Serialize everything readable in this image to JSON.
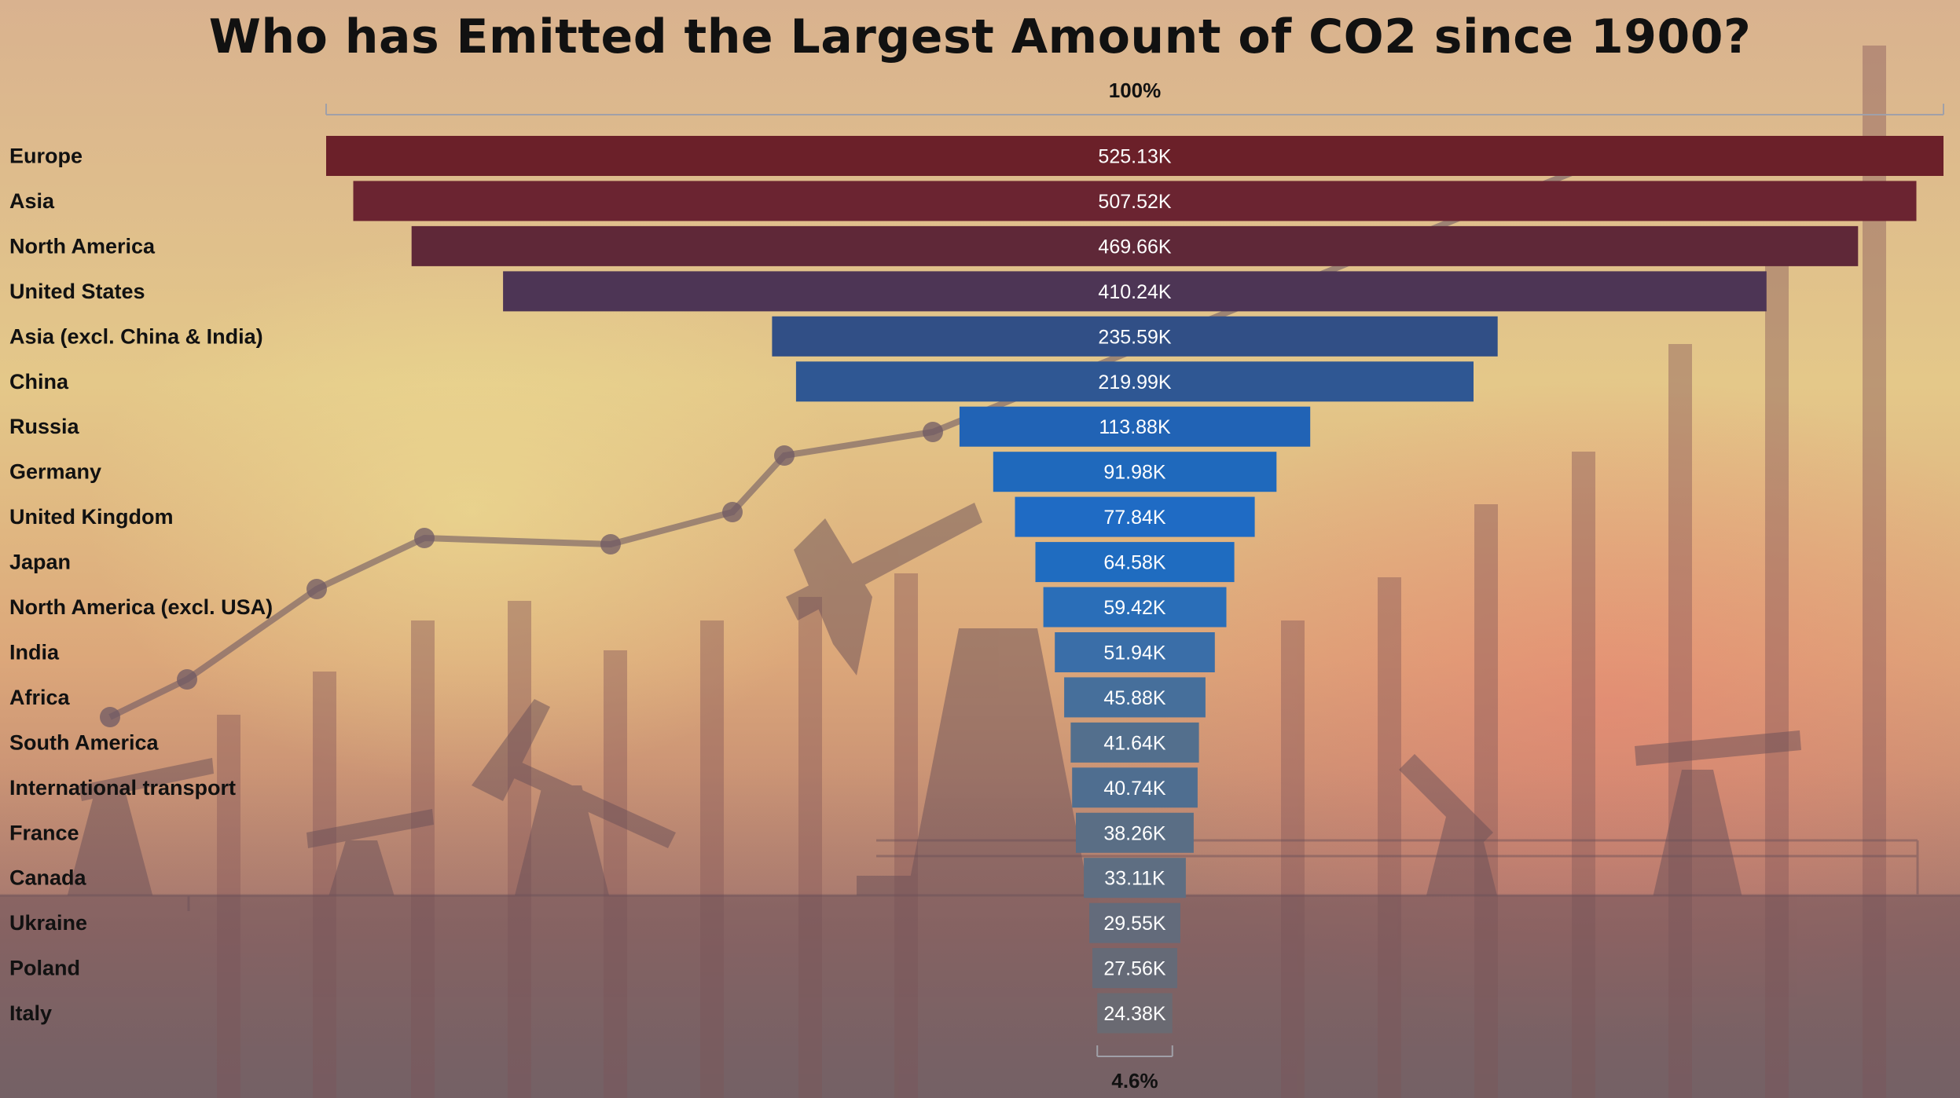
{
  "title": "Who has Emitted the Largest Amount of CO2 since 1900?",
  "chart_data": {
    "type": "bar",
    "orientation": "horizontal-funnel",
    "categories": [
      "Europe",
      "Asia",
      "North America",
      "United States",
      "Asia (excl. China & India)",
      "China",
      "Russia",
      "Germany",
      "United Kingdom",
      "Japan",
      "North America (excl. USA)",
      "India",
      "Africa",
      "South America",
      "International transport",
      "France",
      "Canada",
      "Ukraine",
      "Poland",
      "Italy"
    ],
    "values": [
      525.13,
      507.52,
      469.66,
      410.24,
      235.59,
      219.99,
      113.88,
      91.98,
      77.84,
      64.58,
      59.42,
      51.94,
      45.88,
      41.64,
      40.74,
      38.26,
      33.11,
      29.55,
      27.56,
      24.38
    ],
    "value_labels": [
      "525.13K",
      "507.52K",
      "469.66K",
      "410.24K",
      "235.59K",
      "219.99K",
      "113.88K",
      "91.98K",
      "77.84K",
      "64.58K",
      "59.42K",
      "51.94K",
      "45.88K",
      "41.64K",
      "40.74K",
      "38.26K",
      "33.11K",
      "29.55K",
      "27.56K",
      "24.38K"
    ],
    "unit": "K",
    "top_percent_label": "100%",
    "bottom_percent_label": "4.6%",
    "colors": [
      "#6b2029",
      "#6b2431",
      "#5f2838",
      "#4d3555",
      "#314f86",
      "#2f5793",
      "#2163b5",
      "#1f69bc",
      "#1f6bc4",
      "#1f6cc0",
      "#2a6eb8",
      "#3a6ea8",
      "#466f9b",
      "#536f8d",
      "#4f6e90",
      "#5a6e85",
      "#5e6e82",
      "#636b7b",
      "#656a77",
      "#6a6a72"
    ]
  }
}
